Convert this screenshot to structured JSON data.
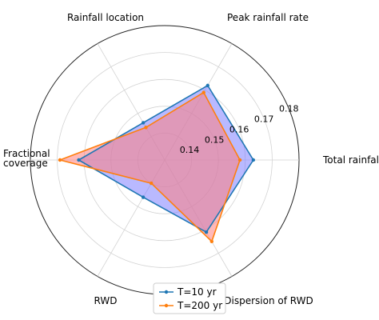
{
  "chart_data": {
    "type": "radar",
    "categories": [
      "Total rainfall",
      "Peak rainfall rate",
      "Rainfall location",
      "Fractional coverage",
      "RWD",
      "Dispersion of RWD"
    ],
    "series": [
      {
        "name": "T=10 yr",
        "color": "#1f77b4",
        "fill": "#8080ff",
        "values": [
          0.163,
          0.162,
          0.146,
          0.162,
          0.146,
          0.161
        ]
      },
      {
        "name": "T=200 yr",
        "color": "#ff7f0e",
        "fill": "#ff8080",
        "values": [
          0.158,
          0.159,
          0.144,
          0.169,
          0.14,
          0.165
        ]
      }
    ],
    "rlim": [
      0.13,
      0.18
    ],
    "ticks": [
      0.14,
      0.15,
      0.16,
      0.17,
      0.18
    ],
    "tick_labels": [
      "0.14",
      "0.15",
      "0.16",
      "0.17",
      "0.18"
    ],
    "grid": true,
    "legend": "bottom-center"
  }
}
